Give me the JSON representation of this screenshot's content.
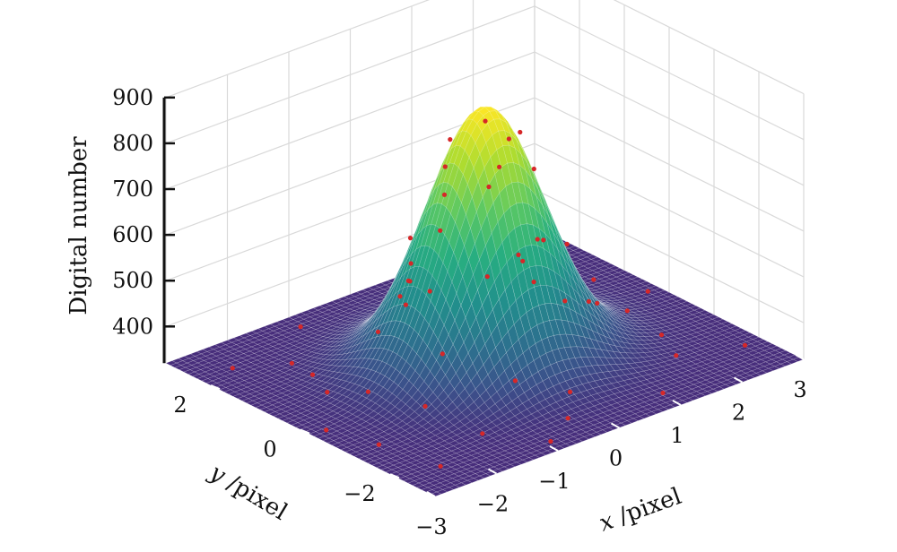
{
  "chart_data": {
    "type": "surface3d",
    "title": "",
    "surface_model": "2D Gaussian: z = base + amplitude * exp(-(x^2 + y^2) / (2*sigma^2))",
    "surface_params": {
      "base": 320,
      "amplitude": 555,
      "sigma": 0.8
    },
    "colormap": [
      "#472d7b",
      "#3b528b",
      "#2c728e",
      "#21918c",
      "#28ae80",
      "#5ec962",
      "#addc30",
      "#fde725"
    ],
    "measured_points_color": "#d62728",
    "x_axis": {
      "label_var": "x",
      "label_unit": " /pixel",
      "range": [
        -3,
        3
      ],
      "ticks": [
        -3,
        -2,
        -1,
        0,
        1,
        2,
        3
      ],
      "tick_labels": [
        "−3",
        "−2",
        "−1",
        "0",
        "1",
        "2",
        "3"
      ]
    },
    "y_axis": {
      "label_var": "y",
      "label_unit": " /pixel",
      "range": [
        -3,
        3
      ],
      "ticks": [
        -2,
        0,
        2
      ],
      "tick_labels": [
        "−2",
        "0",
        "2"
      ]
    },
    "z_axis": {
      "label": "Digital number",
      "range": [
        320,
        900
      ],
      "ticks": [
        400,
        500,
        600,
        700,
        800,
        900
      ],
      "tick_labels": [
        "400",
        "500",
        "600",
        "700",
        "800",
        "900"
      ]
    },
    "measured_points": [
      [
        0.3,
        0.4,
        810
      ],
      [
        -0.2,
        0.5,
        790
      ],
      [
        0.5,
        -0.1,
        800
      ],
      [
        0.1,
        -0.4,
        820
      ],
      [
        -0.5,
        0.2,
        760
      ],
      [
        0.6,
        0.5,
        690
      ],
      [
        -0.3,
        -0.5,
        740
      ],
      [
        0.8,
        0.0,
        700
      ],
      [
        -0.8,
        -0.1,
        650
      ],
      [
        0.0,
        0.9,
        640
      ],
      [
        0.2,
        -0.9,
        620
      ],
      [
        -0.7,
        0.7,
        590
      ],
      [
        0.9,
        -0.6,
        560
      ],
      [
        -1.0,
        0.3,
        530
      ],
      [
        1.1,
        0.2,
        520
      ],
      [
        -0.4,
        1.1,
        500
      ],
      [
        0.5,
        -1.1,
        480
      ],
      [
        1.2,
        0.8,
        440
      ],
      [
        -1.2,
        -0.7,
        430
      ],
      [
        -1.3,
        0.6,
        420
      ],
      [
        1.4,
        -0.4,
        400
      ],
      [
        0.2,
        1.5,
        390
      ],
      [
        -0.6,
        -1.5,
        380
      ],
      [
        1.6,
        1.1,
        360
      ],
      [
        -1.7,
        -1.0,
        355
      ],
      [
        2.1,
        -0.3,
        340
      ],
      [
        -2.2,
        0.5,
        338
      ],
      [
        0.3,
        2.3,
        335
      ],
      [
        -0.4,
        -2.4,
        332
      ],
      [
        1.8,
        -1.8,
        330
      ],
      [
        -1.9,
        1.7,
        328
      ],
      [
        2.5,
        1.0,
        325
      ],
      [
        -2.6,
        -1.2,
        326
      ],
      [
        1.0,
        -2.6,
        327
      ],
      [
        -1.1,
        2.6,
        324
      ],
      [
        2.7,
        -2.1,
        322
      ],
      [
        -2.5,
        2.2,
        323
      ],
      [
        2.3,
        2.4,
        321
      ],
      [
        -2.4,
        -2.3,
        322
      ],
      [
        0.8,
        2.8,
        320
      ],
      [
        -0.9,
        -2.7,
        321
      ],
      [
        2.8,
        0.2,
        323
      ],
      [
        -2.8,
        -0.3,
        324
      ],
      [
        1.5,
        2.0,
        333
      ],
      [
        -1.5,
        -2.0,
        334
      ],
      [
        2.0,
        -1.2,
        336
      ],
      [
        -2.0,
        1.1,
        337
      ],
      [
        0.0,
        -1.9,
        345
      ],
      [
        0.1,
        1.9,
        346
      ],
      [
        1.9,
        0.1,
        347
      ],
      [
        -1.9,
        0.0,
        348
      ]
    ]
  }
}
